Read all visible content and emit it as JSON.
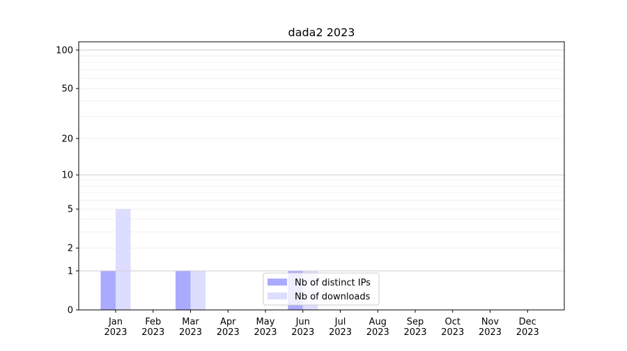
{
  "chart_data": {
    "type": "bar",
    "title": "dada2 2023",
    "xlabel": "",
    "ylabel": "",
    "y_scale": "log(1+y)",
    "ylim": [
      0,
      116
    ],
    "yticks": [
      0,
      1,
      2,
      5,
      10,
      20,
      50,
      100
    ],
    "grid": true,
    "legend_position": "lower-center",
    "categories": [
      "Jan\n2023",
      "Feb\n2023",
      "Mar\n2023",
      "Apr\n2023",
      "May\n2023",
      "Jun\n2023",
      "Jul\n2023",
      "Aug\n2023",
      "Sep\n2023",
      "Oct\n2023",
      "Nov\n2023",
      "Dec\n2023"
    ],
    "series": [
      {
        "name": "Nb of distinct IPs",
        "color": "#aaaaff",
        "values": [
          1,
          0,
          1,
          0,
          0,
          1,
          0,
          0,
          0,
          0,
          0,
          0
        ]
      },
      {
        "name": "Nb of downloads",
        "color": "#ddddff",
        "values": [
          5,
          0,
          1,
          0,
          0,
          1,
          0,
          0,
          0,
          0,
          0,
          0
        ]
      }
    ]
  }
}
